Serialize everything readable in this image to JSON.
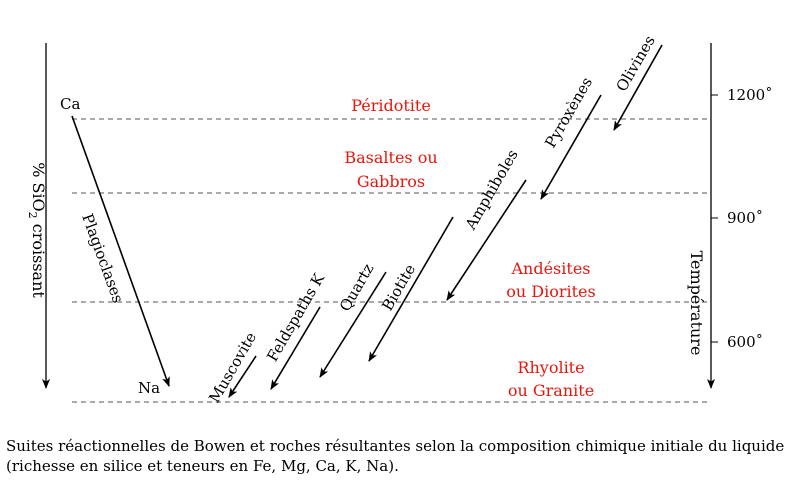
{
  "diagram": {
    "left_axis_label": "% SiO",
    "left_axis_subscript": "2",
    "left_axis_suffix": " croissant",
    "right_axis_label": "Température",
    "temperature_ticks": [
      "1200˚",
      "900˚",
      "600˚"
    ],
    "plagioclase": {
      "start": "Ca",
      "end": "Na",
      "label": "Plagioclases"
    },
    "rocks": {
      "peridotite": "Péridotite",
      "basaltes_line1": "Basaltes ou",
      "basaltes_line2": "Gabbros",
      "andesites_line1": "Andésites",
      "andesites_line2": "ou Diorites",
      "rhyolite_line1": "Rhyolite",
      "rhyolite_line2": "ou Granite"
    },
    "minerals": {
      "olivines": "Olivines",
      "pyroxenes": "Pyroxènes",
      "amphiboles": "Amphiboles",
      "biotite": "Biotite",
      "quartz": "Quartz",
      "feldspaths": "Feldspaths K",
      "muscovite": "Muscovite"
    },
    "colors": {
      "rock_label": "#e8160c",
      "ink": "#000000",
      "dashed": "#555555"
    }
  },
  "caption": "Suites réactionnelles de Bowen et roches résultantes selon la composition chimique initiale du liquide (richesse en silice et teneurs en Fe, Mg, Ca, K, Na)."
}
